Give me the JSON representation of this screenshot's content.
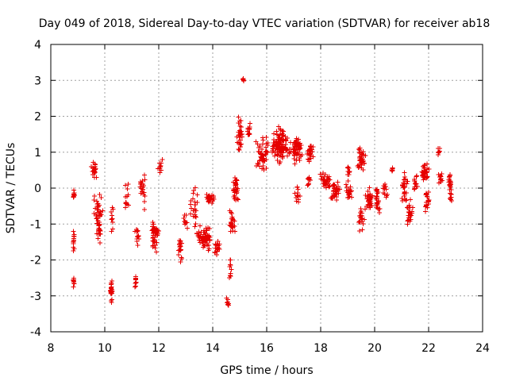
{
  "chart_data": {
    "type": "scatter",
    "title": "Day 049 of 2018, Sidereal Day-to-day VTEC variation (SDTVAR) for receiver ab18",
    "xlabel": "GPS time / hours",
    "ylabel": "SDTVAR / TECUs",
    "xlim": [
      8,
      24
    ],
    "ylim": [
      -4,
      4
    ],
    "xticks": [
      "8",
      "10",
      "12",
      "14",
      "16",
      "18",
      "20",
      "22",
      "24"
    ],
    "yticks": [
      "-4",
      "-3",
      "-2",
      "-1",
      "0",
      "1",
      "2",
      "3",
      "4"
    ],
    "grid": true,
    "marker": "+",
    "color": "#e60000",
    "series": [
      {
        "name": "SDTVAR",
        "clusters": [
          {
            "x": 8.85,
            "dx": 0.07,
            "y": -0.2,
            "dy": 0.25,
            "n": 10
          },
          {
            "x": 8.85,
            "dx": 0.06,
            "y": -1.5,
            "dy": 0.4,
            "n": 14
          },
          {
            "x": 8.85,
            "dx": 0.05,
            "y": -2.6,
            "dy": 0.25,
            "n": 8
          },
          {
            "x": 9.6,
            "dx": 0.15,
            "y": 0.5,
            "dy": 0.3,
            "n": 20
          },
          {
            "x": 9.75,
            "dx": 0.2,
            "y": -0.6,
            "dy": 0.6,
            "n": 35
          },
          {
            "x": 9.8,
            "dx": 0.15,
            "y": -1.3,
            "dy": 0.4,
            "n": 20
          },
          {
            "x": 10.25,
            "dx": 0.07,
            "y": -0.8,
            "dy": 0.5,
            "n": 10
          },
          {
            "x": 10.25,
            "dx": 0.07,
            "y": -2.8,
            "dy": 0.4,
            "n": 22
          },
          {
            "x": 10.8,
            "dx": 0.1,
            "y": -0.2,
            "dy": 0.5,
            "n": 12
          },
          {
            "x": 11.2,
            "dx": 0.1,
            "y": -1.3,
            "dy": 0.5,
            "n": 15
          },
          {
            "x": 11.15,
            "dx": 0.06,
            "y": -2.6,
            "dy": 0.25,
            "n": 10
          },
          {
            "x": 11.4,
            "dx": 0.15,
            "y": 0.0,
            "dy": 0.7,
            "n": 20
          },
          {
            "x": 11.85,
            "dx": 0.2,
            "y": -1.3,
            "dy": 0.6,
            "n": 45
          },
          {
            "x": 12.05,
            "dx": 0.1,
            "y": 0.6,
            "dy": 0.4,
            "n": 10
          },
          {
            "x": 12.8,
            "dx": 0.1,
            "y": -1.7,
            "dy": 0.5,
            "n": 20
          },
          {
            "x": 13.0,
            "dx": 0.1,
            "y": -0.9,
            "dy": 0.5,
            "n": 10
          },
          {
            "x": 13.3,
            "dx": 0.2,
            "y": -0.5,
            "dy": 0.8,
            "n": 25
          },
          {
            "x": 13.7,
            "dx": 0.35,
            "y": -1.4,
            "dy": 0.4,
            "n": 70
          },
          {
            "x": 13.9,
            "dx": 0.25,
            "y": -0.3,
            "dy": 0.2,
            "n": 25
          },
          {
            "x": 14.15,
            "dx": 0.15,
            "y": -1.7,
            "dy": 0.3,
            "n": 20
          },
          {
            "x": 14.55,
            "dx": 0.08,
            "y": -3.2,
            "dy": 0.2,
            "n": 8
          },
          {
            "x": 14.65,
            "dx": 0.1,
            "y": -2.3,
            "dy": 0.4,
            "n": 10
          },
          {
            "x": 14.7,
            "dx": 0.15,
            "y": -1.0,
            "dy": 0.5,
            "n": 25
          },
          {
            "x": 14.85,
            "dx": 0.15,
            "y": 0.0,
            "dy": 0.6,
            "n": 30
          },
          {
            "x": 15.0,
            "dx": 0.15,
            "y": 1.5,
            "dy": 0.7,
            "n": 30
          },
          {
            "x": 15.15,
            "dx": 0.05,
            "y": 3.0,
            "dy": 0.15,
            "n": 5
          },
          {
            "x": 15.35,
            "dx": 0.1,
            "y": 1.6,
            "dy": 0.3,
            "n": 12
          },
          {
            "x": 15.85,
            "dx": 0.3,
            "y": 0.9,
            "dy": 0.7,
            "n": 50
          },
          {
            "x": 16.5,
            "dx": 0.4,
            "y": 1.2,
            "dy": 0.6,
            "n": 120
          },
          {
            "x": 17.1,
            "dx": 0.3,
            "y": 1.1,
            "dy": 0.5,
            "n": 60
          },
          {
            "x": 17.15,
            "dx": 0.15,
            "y": -0.2,
            "dy": 0.4,
            "n": 15
          },
          {
            "x": 17.6,
            "dx": 0.15,
            "y": 1.0,
            "dy": 0.4,
            "n": 25
          },
          {
            "x": 17.55,
            "dx": 0.1,
            "y": 0.2,
            "dy": 0.3,
            "n": 10
          },
          {
            "x": 18.2,
            "dx": 0.25,
            "y": 0.2,
            "dy": 0.3,
            "n": 35
          },
          {
            "x": 18.55,
            "dx": 0.25,
            "y": -0.1,
            "dy": 0.35,
            "n": 40
          },
          {
            "x": 19.05,
            "dx": 0.15,
            "y": -0.1,
            "dy": 0.4,
            "n": 20
          },
          {
            "x": 19.05,
            "dx": 0.1,
            "y": 0.5,
            "dy": 0.2,
            "n": 8
          },
          {
            "x": 19.5,
            "dx": 0.2,
            "y": 0.8,
            "dy": 0.5,
            "n": 35
          },
          {
            "x": 19.5,
            "dx": 0.15,
            "y": -0.9,
            "dy": 0.4,
            "n": 20
          },
          {
            "x": 19.8,
            "dx": 0.2,
            "y": -0.3,
            "dy": 0.4,
            "n": 35
          },
          {
            "x": 20.1,
            "dx": 0.15,
            "y": -0.4,
            "dy": 0.5,
            "n": 25
          },
          {
            "x": 20.4,
            "dx": 0.1,
            "y": 0.0,
            "dy": 0.4,
            "n": 12
          },
          {
            "x": 20.65,
            "dx": 0.06,
            "y": 0.5,
            "dy": 0.1,
            "n": 6
          },
          {
            "x": 21.1,
            "dx": 0.15,
            "y": 0.0,
            "dy": 0.6,
            "n": 30
          },
          {
            "x": 21.3,
            "dx": 0.15,
            "y": -0.6,
            "dy": 0.5,
            "n": 25
          },
          {
            "x": 21.5,
            "dx": 0.1,
            "y": 0.2,
            "dy": 0.4,
            "n": 15
          },
          {
            "x": 21.85,
            "dx": 0.2,
            "y": 0.5,
            "dy": 0.4,
            "n": 35
          },
          {
            "x": 21.95,
            "dx": 0.15,
            "y": -0.4,
            "dy": 0.5,
            "n": 20
          },
          {
            "x": 22.4,
            "dx": 0.08,
            "y": 1.0,
            "dy": 0.2,
            "n": 8
          },
          {
            "x": 22.45,
            "dx": 0.1,
            "y": 0.3,
            "dy": 0.3,
            "n": 12
          },
          {
            "x": 22.8,
            "dx": 0.1,
            "y": 0.0,
            "dy": 0.7,
            "n": 30
          }
        ]
      }
    ]
  }
}
